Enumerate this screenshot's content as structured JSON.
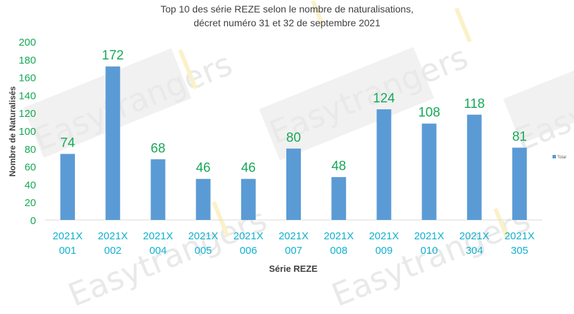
{
  "chart_data": {
    "type": "bar",
    "title": "Top 10 des série REZE selon le nombre de naturalisations,",
    "subtitle": "décret numéro 31 et 32 de septembre 2021",
    "xlabel": "Série REZE",
    "ylabel": "Nombre de Naturalisés",
    "ylim": [
      0,
      200
    ],
    "yticks": [
      "0",
      "20",
      "40",
      "60",
      "80",
      "100",
      "120",
      "140",
      "160",
      "180",
      "200"
    ],
    "grid": false,
    "legend_position": "right",
    "categories": [
      [
        "2021X",
        "001"
      ],
      [
        "2021X",
        "002"
      ],
      [
        "2021X",
        "004"
      ],
      [
        "2021X",
        "005"
      ],
      [
        "2021X",
        "006"
      ],
      [
        "2021X",
        "007"
      ],
      [
        "2021X",
        "008"
      ],
      [
        "2021X",
        "009"
      ],
      [
        "2021X",
        "010"
      ],
      [
        "2021X",
        "304"
      ],
      [
        "2021X",
        "305"
      ]
    ],
    "series": [
      {
        "name": "Total",
        "values": [
          74,
          172,
          68,
          46,
          46,
          80,
          48,
          124,
          108,
          118,
          81
        ]
      }
    ],
    "colors": {
      "bar": "#5b9bd5",
      "data_label": "#16a957",
      "tick_label": "#0fb0cf",
      "axis_text": "#404040"
    }
  },
  "watermark": "Easytrangers"
}
